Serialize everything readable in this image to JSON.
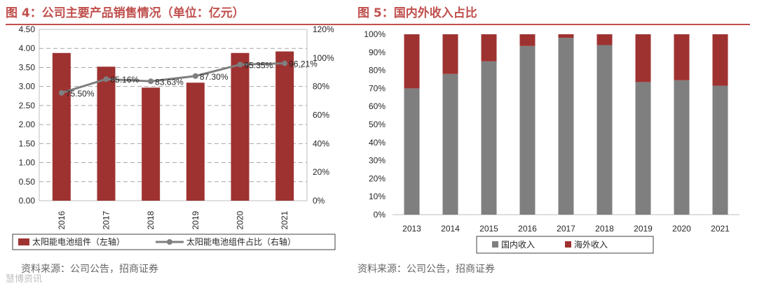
{
  "left": {
    "figure_title": "图 4：公司主要产品销售情况（单位：亿元）",
    "source": "资料来源：公司公告，招商证券",
    "colors": {
      "bar": "#9e3231",
      "line": "#7f7f7f",
      "title": "#c0504d"
    },
    "chart_data": {
      "type": "bar",
      "categories": [
        "2016",
        "2017",
        "2018",
        "2019",
        "2020",
        "2021"
      ],
      "series": [
        {
          "name": "太阳能电池组件（左轴）",
          "axis": "left",
          "values": [
            3.88,
            3.52,
            2.97,
            3.1,
            3.88,
            3.92
          ]
        },
        {
          "name": "太阳能电池组件占比（右轴）",
          "axis": "right",
          "type": "line",
          "values": [
            75.5,
            85.16,
            83.63,
            87.3,
            95.35,
            96.21
          ],
          "labels": [
            "75.50%",
            "85.16%",
            "83.63%",
            "87.30%",
            "95.35%",
            "96.21%"
          ]
        }
      ],
      "y_left": {
        "range": [
          0,
          4.5
        ],
        "ticks": [
          "0.00",
          "0.50",
          "1.00",
          "1.50",
          "2.00",
          "2.50",
          "3.00",
          "3.50",
          "4.00",
          "4.50"
        ]
      },
      "y_right": {
        "range": [
          0,
          120
        ],
        "ticks": [
          "0%",
          "20%",
          "40%",
          "60%",
          "80%",
          "100%",
          "120%"
        ]
      },
      "legend": [
        "太阳能电池组件（左轴）",
        "太阳能电池组件占比（右轴）"
      ],
      "grid": true,
      "legend_position": "bottom"
    }
  },
  "right": {
    "figure_title": "图 5：国内外收入占比",
    "source": "资料来源：公司公告，招商证券",
    "colors": {
      "domestic": "#7f7f7f",
      "overseas": "#9e3231",
      "title": "#c0504d"
    },
    "chart_data": {
      "type": "bar",
      "stacked": true,
      "categories": [
        "2013",
        "2014",
        "2015",
        "2016",
        "2017",
        "2018",
        "2019",
        "2020",
        "2021"
      ],
      "series": [
        {
          "name": "国内收入",
          "values": [
            70,
            78,
            85,
            93.5,
            98,
            94,
            73.5,
            74.5,
            71.5
          ]
        },
        {
          "name": "海外收入",
          "values": [
            30,
            22,
            15,
            6.5,
            2,
            6,
            26.5,
            25.5,
            28.5
          ]
        }
      ],
      "y": {
        "range": [
          0,
          100
        ],
        "ticks": [
          "0%",
          "10%",
          "20%",
          "30%",
          "40%",
          "50%",
          "60%",
          "70%",
          "80%",
          "90%",
          "100%"
        ]
      },
      "legend": [
        "国内收入",
        "海外收入"
      ],
      "grid": false,
      "legend_position": "bottom"
    }
  },
  "watermark": "慧博资讯"
}
